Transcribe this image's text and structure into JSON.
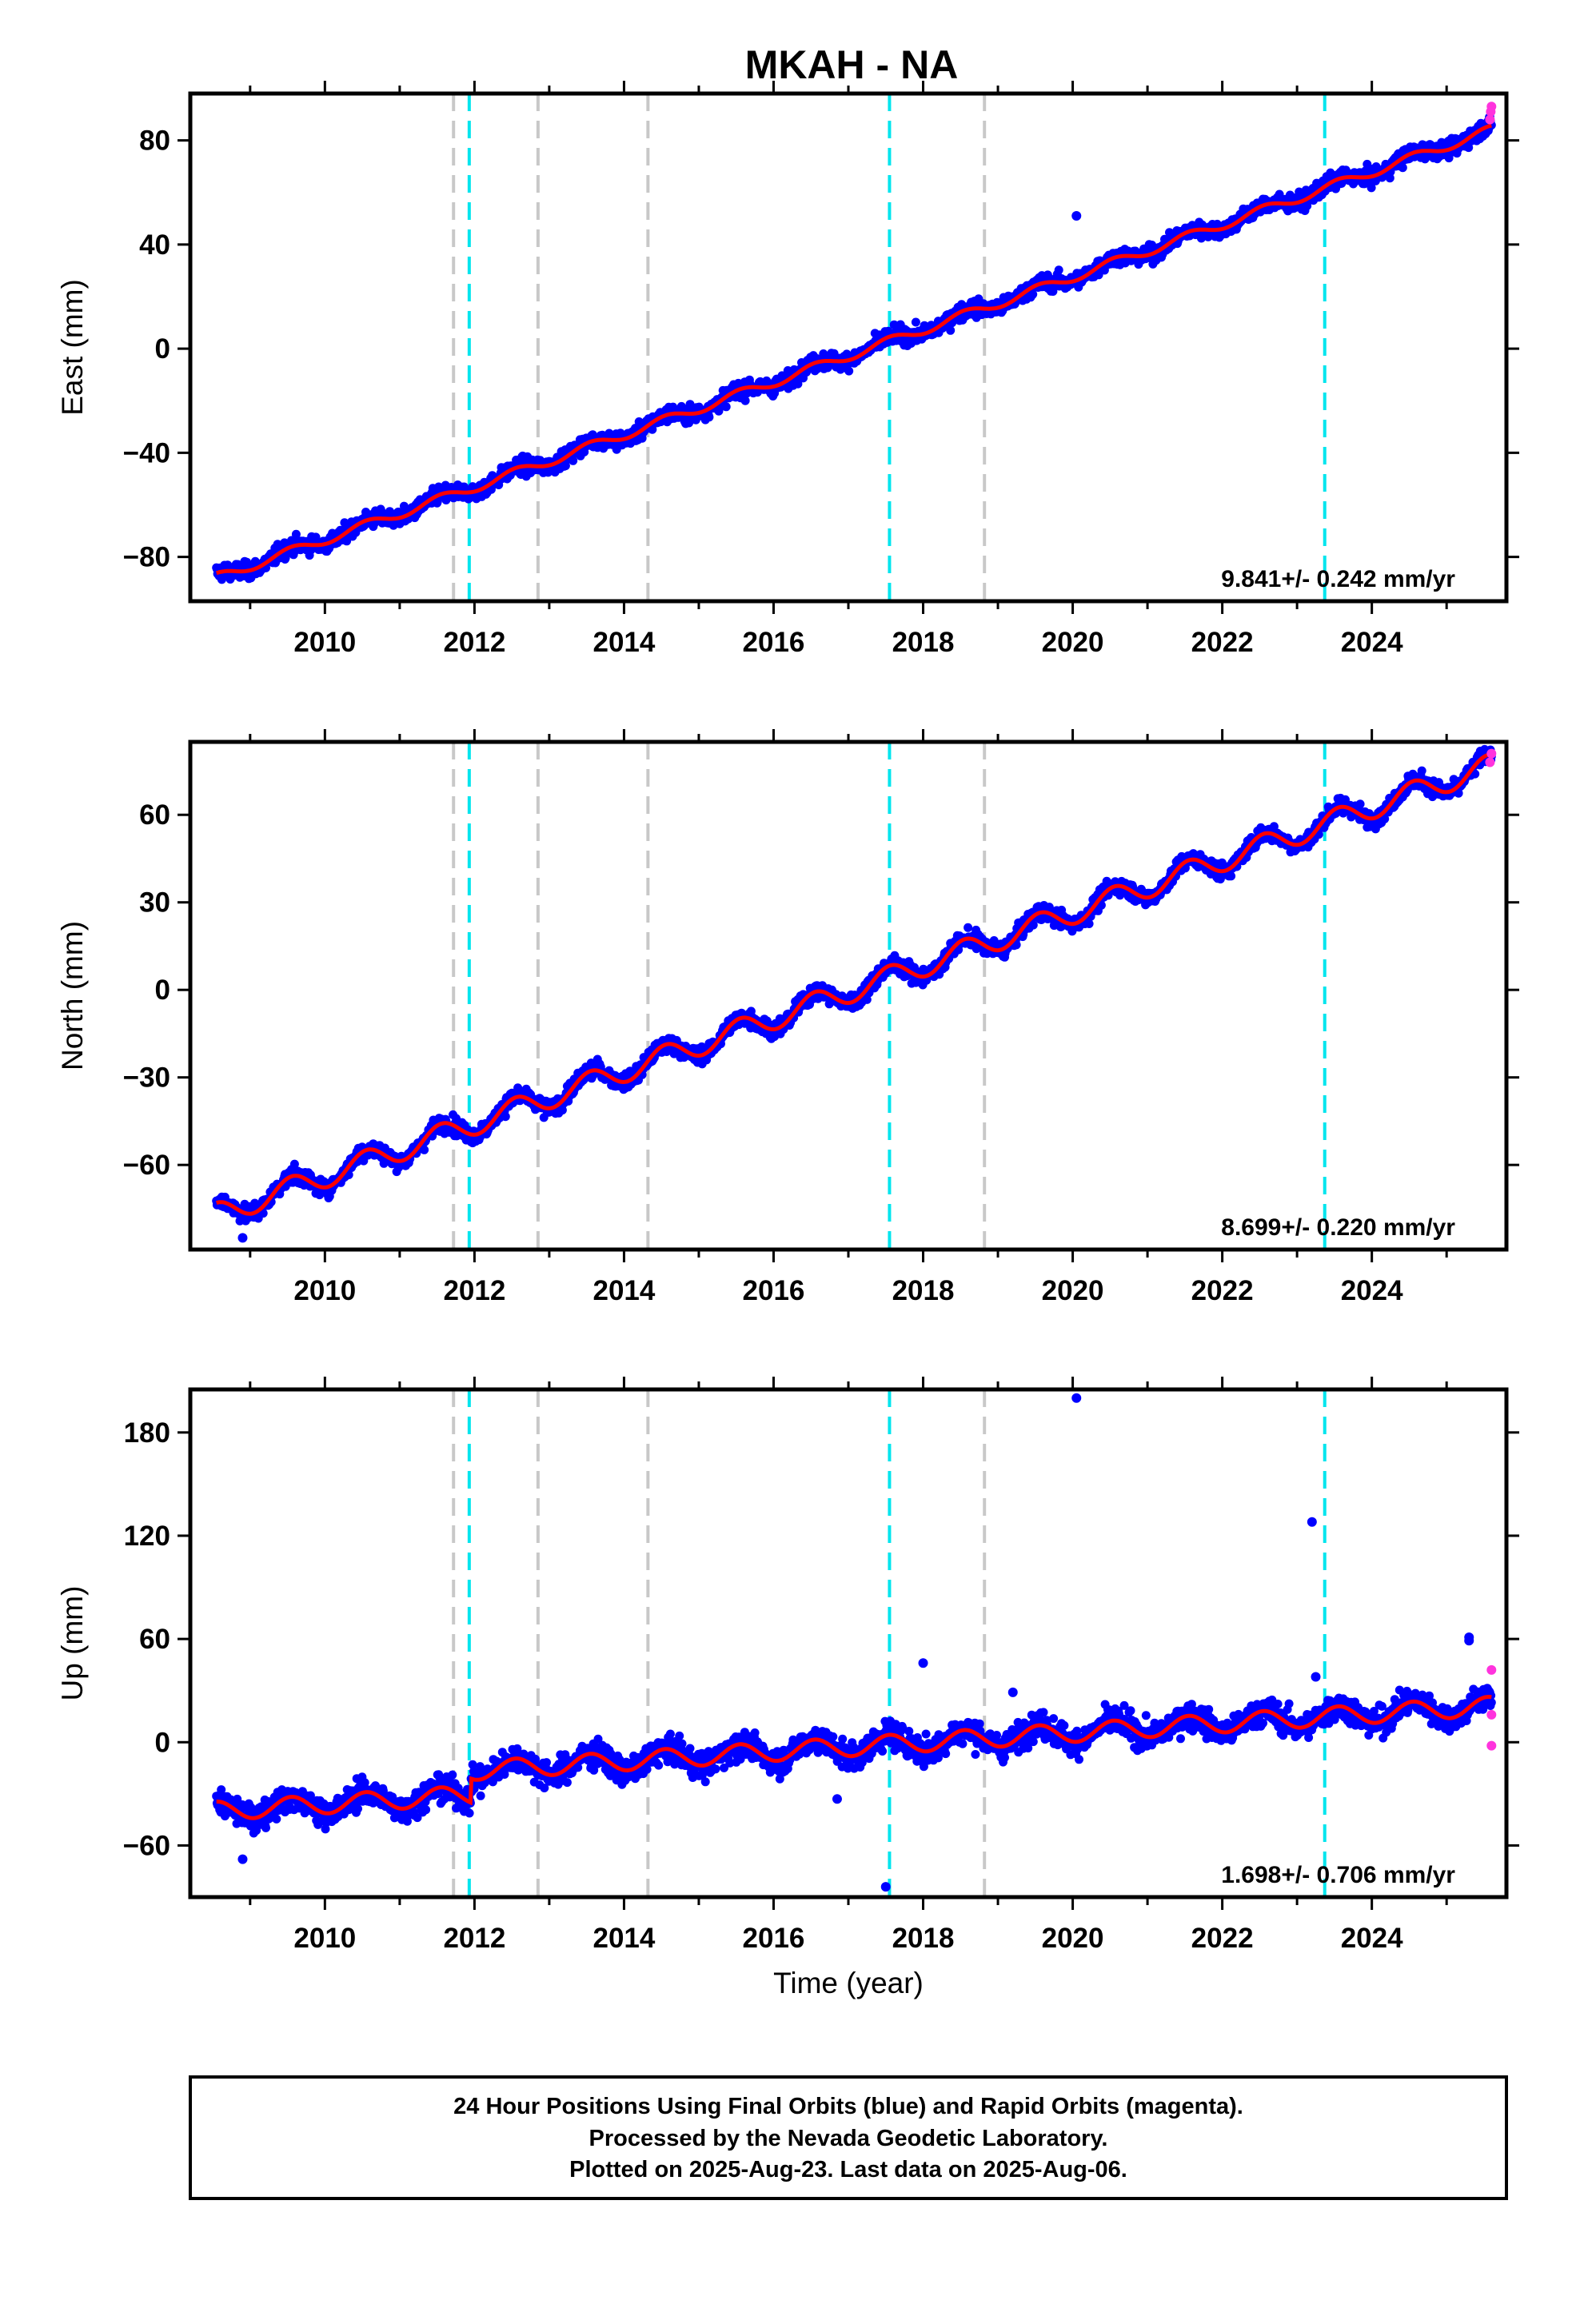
{
  "title": "MKAH - NA",
  "colors": {
    "final_orbits": "#0000ff",
    "rapid_orbits": "#ff33dd",
    "model_fit": "#ff0000",
    "equipment_change": "#c8c8c8",
    "earthquake": "#00e5ee",
    "frame": "#000000"
  },
  "chart_data": [
    {
      "type": "scatter",
      "component": "east",
      "ylabel": "East (mm)",
      "xlabel": "",
      "xlim": [
        2008.2,
        2025.8
      ],
      "ylim": [
        -97,
        98
      ],
      "x_ticks": [
        2010,
        2012,
        2014,
        2016,
        2018,
        2020,
        2022,
        2024
      ],
      "y_ticks": [
        -80,
        -40,
        0,
        40,
        80
      ],
      "rate_text": "9.841+/- 0.242 mm/yr",
      "start_value": -88,
      "end_value": 84,
      "seasonal_amplitude": 1.8,
      "scatter_noise": 2.2,
      "steps": [],
      "outliers": [
        {
          "x": 2020.05,
          "y": 51
        }
      ],
      "rapid_points": [
        {
          "x": 2025.58,
          "y": 88
        },
        {
          "x": 2025.59,
          "y": 91
        },
        {
          "x": 2025.6,
          "y": 93
        }
      ]
    },
    {
      "type": "scatter",
      "component": "north",
      "ylabel": "North (mm)",
      "xlabel": "",
      "xlim": [
        2008.2,
        2025.8
      ],
      "ylim": [
        -89,
        85
      ],
      "x_ticks": [
        2010,
        2012,
        2014,
        2016,
        2018,
        2020,
        2022,
        2024
      ],
      "y_ticks": [
        -60,
        -30,
        0,
        30,
        60
      ],
      "rate_text": "8.699+/- 0.220 mm/yr",
      "start_value": -77,
      "end_value": 77,
      "seasonal_amplitude": 4.0,
      "scatter_noise": 2.0,
      "steps": [],
      "outliers": [
        {
          "x": 2008.9,
          "y": -85
        }
      ],
      "rapid_points": [
        {
          "x": 2025.58,
          "y": 78
        },
        {
          "x": 2025.6,
          "y": 81
        }
      ]
    },
    {
      "type": "scatter",
      "component": "up",
      "ylabel": "Up (mm)",
      "xlabel": "Time (year)",
      "xlim": [
        2008.2,
        2025.8
      ],
      "ylim": [
        -90,
        205
      ],
      "x_ticks": [
        2010,
        2012,
        2014,
        2016,
        2018,
        2020,
        2022,
        2024
      ],
      "y_ticks": [
        -60,
        0,
        60,
        120,
        180
      ],
      "rate_text": "1.698+/- 0.706 mm/yr",
      "start_value": -40,
      "end_value": 7,
      "seasonal_amplitude": 5.5,
      "scatter_noise": 5.5,
      "steps": [
        {
          "x": 2011.95,
          "dy": 14
        }
      ],
      "outliers": [
        {
          "x": 2020.05,
          "y": 200
        },
        {
          "x": 2023.2,
          "y": 128
        },
        {
          "x": 2025.3,
          "y": 61
        },
        {
          "x": 2025.3,
          "y": 59
        },
        {
          "x": 2018.0,
          "y": 46
        },
        {
          "x": 2017.5,
          "y": -84
        },
        {
          "x": 2016.85,
          "y": -33
        },
        {
          "x": 2008.9,
          "y": -68
        },
        {
          "x": 2023.25,
          "y": 38
        },
        {
          "x": 2019.2,
          "y": 29
        }
      ],
      "rapid_points": [
        {
          "x": 2025.6,
          "y": 42
        },
        {
          "x": 2025.6,
          "y": 16
        },
        {
          "x": 2025.6,
          "y": -2
        }
      ]
    }
  ],
  "event_lines": {
    "gray": [
      2011.72,
      2012.85,
      2014.32,
      2018.82
    ],
    "cyan": [
      2011.93,
      2017.55,
      2023.37
    ]
  },
  "footer": {
    "line1": "24 Hour Positions Using Final Orbits (blue) and Rapid Orbits (magenta).",
    "line2": "Processed by the Nevada Geodetic Laboratory.",
    "line3": "Plotted on 2025-Aug-23. Last data on 2025-Aug-06."
  }
}
